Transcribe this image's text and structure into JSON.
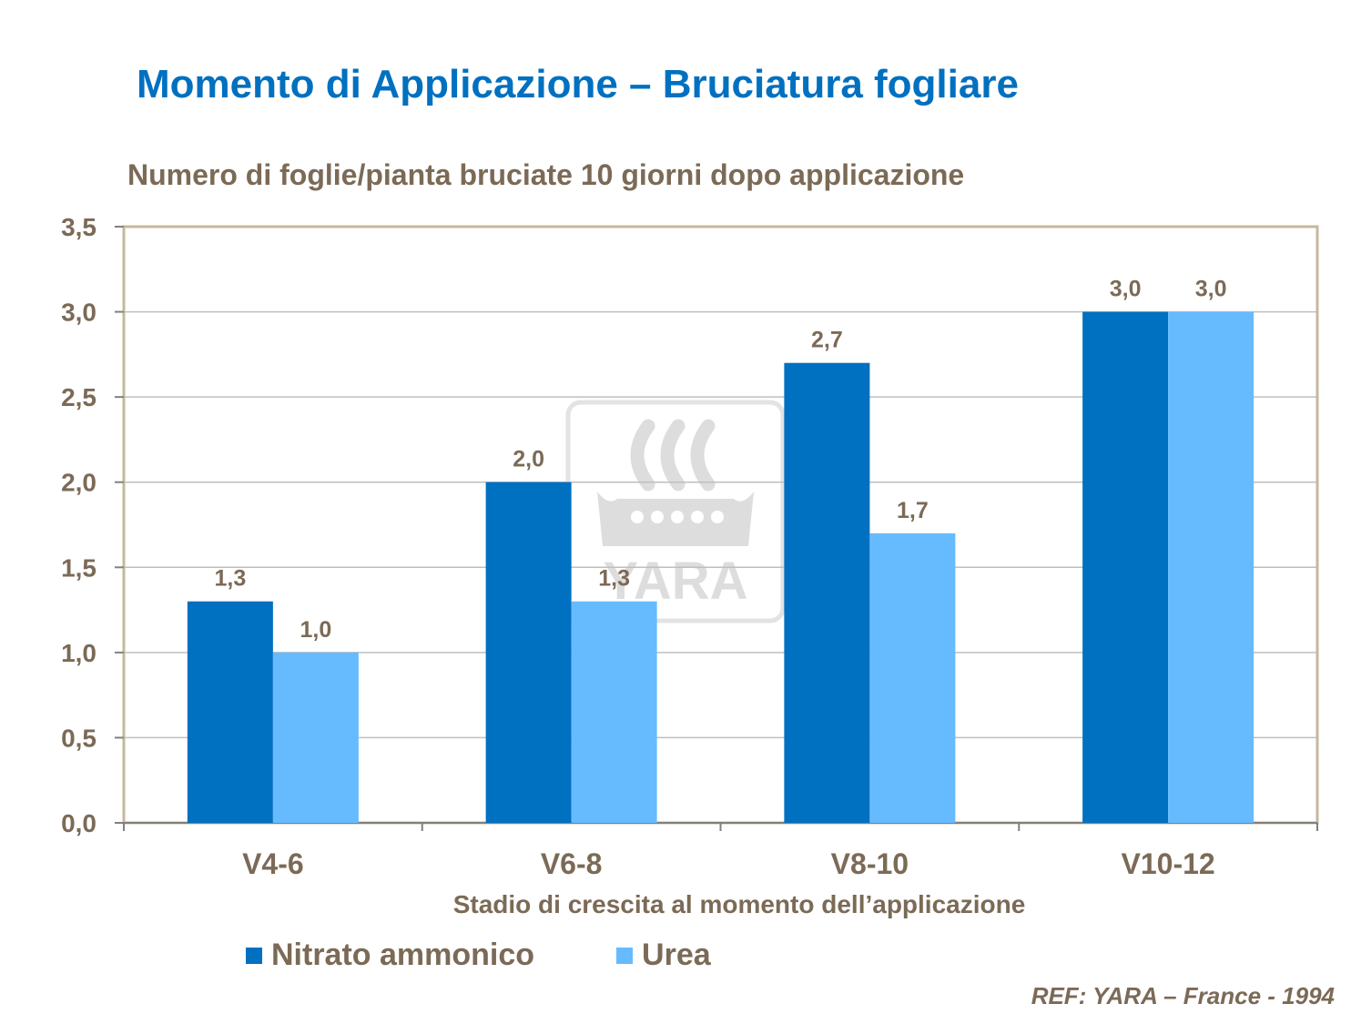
{
  "slide_title": "Momento di Applicazione – Bruciatura fogliare",
  "reference": "REF: YARA – France - 1994",
  "watermark": {
    "text": "YARA",
    "icon": "yara-viking-ship-logo",
    "color": "#D9D9D9"
  },
  "colors": {
    "nitrato": "#0070C0",
    "urea": "#66BBFF",
    "text": "#7B6A56",
    "plot_border": "#C6B89E",
    "grid": "#BFBFBF"
  },
  "chart_data": {
    "type": "bar",
    "title": "Numero di foglie/pianta bruciate 10 giorni dopo applicazione",
    "xlabel": "Stadio di crescita al momento dell’applicazione",
    "ylabel": "",
    "categories": [
      "V4-6",
      "V6-8",
      "V8-10",
      "V10-12"
    ],
    "series": [
      {
        "name": "Nitrato ammonico",
        "values": [
          1.3,
          2.0,
          2.7,
          3.0
        ],
        "labels": [
          "1,3",
          "2,0",
          "2,7",
          "3,0"
        ]
      },
      {
        "name": "Urea",
        "values": [
          1.0,
          1.3,
          1.7,
          3.0
        ],
        "labels": [
          "1,0",
          "1,3",
          "1,7",
          "3,0"
        ]
      }
    ],
    "ylim": [
      0,
      3.5
    ],
    "yticks": [
      0,
      0.5,
      1.0,
      1.5,
      2.0,
      2.5,
      3.0,
      3.5
    ],
    "ytick_labels": [
      "0,0",
      "0,5",
      "1,0",
      "1,5",
      "2,0",
      "2,5",
      "3,0",
      "3,5"
    ],
    "grid": true,
    "legend_position": "bottom-left"
  }
}
